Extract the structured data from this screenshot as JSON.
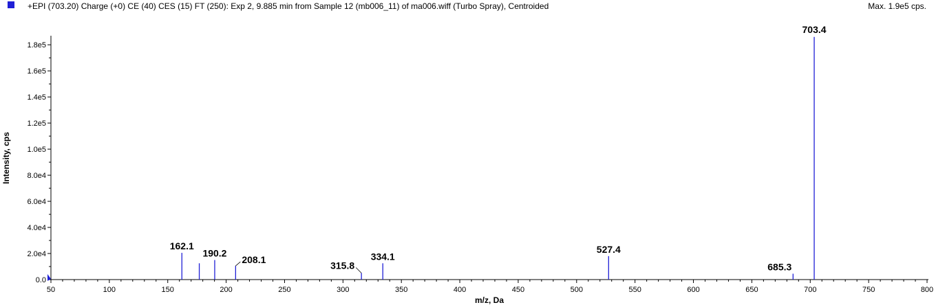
{
  "header": {
    "legend_color": "#1f1fd6",
    "title": "+EPI (703.20) Charge (+0) CE (40) CES (15) FT (250): Exp 2, 9.885 min from Sample 12 (mb006_11) of ma006.wiff (Turbo Spray), Centroided",
    "max_label": "Max. 1.9e5 cps."
  },
  "chart_data": {
    "type": "bar",
    "xlabel": "m/z, Da",
    "ylabel": "Intensity, cps",
    "xlim": [
      50,
      800
    ],
    "ylim": [
      0,
      188000
    ],
    "x_ticks": [
      50,
      100,
      150,
      200,
      250,
      300,
      350,
      400,
      450,
      500,
      550,
      600,
      650,
      700,
      750,
      800
    ],
    "y_ticks": [
      {
        "value": 0,
        "label": "0.0"
      },
      {
        "value": 20000,
        "label": "2.0e4"
      },
      {
        "value": 40000,
        "label": "4.0e4"
      },
      {
        "value": 60000,
        "label": "6.0e4"
      },
      {
        "value": 80000,
        "label": "8.0e4"
      },
      {
        "value": 100000,
        "label": "1.0e5"
      },
      {
        "value": 120000,
        "label": "1.2e5"
      },
      {
        "value": 140000,
        "label": "1.4e5"
      },
      {
        "value": 160000,
        "label": "1.6e5"
      },
      {
        "value": 180000,
        "label": "1.8e5"
      }
    ],
    "series_color": "#1f1fd6",
    "peaks": [
      {
        "mz": 162.1,
        "intensity": 20500,
        "label": "162.1"
      },
      {
        "mz": 177.0,
        "intensity": 12500,
        "label": ""
      },
      {
        "mz": 190.2,
        "intensity": 15000,
        "label": "190.2"
      },
      {
        "mz": 208.1,
        "intensity": 10500,
        "label": "208.1"
      },
      {
        "mz": 315.8,
        "intensity": 5000,
        "label": "315.8"
      },
      {
        "mz": 334.1,
        "intensity": 12500,
        "label": "334.1"
      },
      {
        "mz": 527.4,
        "intensity": 18000,
        "label": "527.4"
      },
      {
        "mz": 685.3,
        "intensity": 4500,
        "label": "685.3"
      },
      {
        "mz": 703.4,
        "intensity": 186000,
        "label": "703.4"
      }
    ]
  }
}
